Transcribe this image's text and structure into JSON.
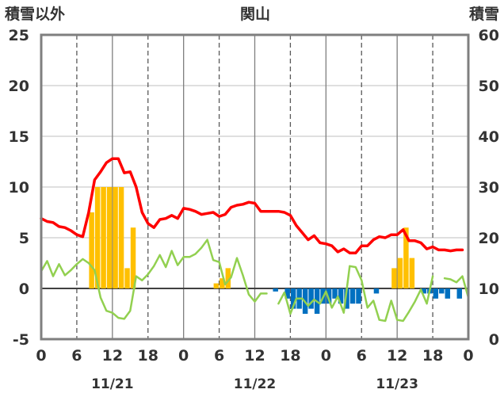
{
  "chart_data": {
    "type": "bar",
    "title": "関山",
    "left_axis_label": "積雪以外",
    "right_axis_label": "積雪",
    "left_ylim": [
      -5,
      25
    ],
    "left_yticks": [
      "-5",
      "0",
      "5",
      "10",
      "15",
      "20",
      "25"
    ],
    "right_ylim": [
      0,
      60
    ],
    "right_yticks": [
      "0",
      "10",
      "20",
      "30",
      "40",
      "50",
      "60"
    ],
    "x_range_hours": [
      0,
      72
    ],
    "x_tick_labels": [
      "0",
      "6",
      "12",
      "18",
      "0",
      "6",
      "12",
      "18",
      "0",
      "6",
      "12",
      "18",
      "0"
    ],
    "date_labels": [
      "11/21",
      "11/22",
      "11/23"
    ],
    "grid": true,
    "colors": {
      "temperature": "#ff0000",
      "green_line": "#92d050",
      "bars_pos": "#ffc000",
      "bars_neg": "#0070c0",
      "snow_depth": "#7030a0",
      "frame": "#7f7f7f"
    },
    "series": [
      {
        "role": "red_line",
        "axis": "left",
        "values": [
          6.9,
          6.6,
          6.5,
          6.1,
          6.0,
          5.7,
          5.3,
          5.1,
          7.5,
          10.7,
          11.5,
          12.4,
          12.8,
          12.8,
          11.4,
          11.5,
          10.0,
          7.5,
          6.4,
          6.0,
          6.8,
          6.9,
          7.2,
          6.9,
          7.9,
          7.8,
          7.6,
          7.3,
          7.4,
          7.5,
          7.1,
          7.3,
          8.0,
          8.2,
          8.3,
          8.5,
          8.4,
          7.6,
          7.6,
          7.6,
          7.6,
          7.5,
          7.2,
          6.2,
          5.5,
          4.8,
          5.2,
          4.5,
          4.4,
          4.2,
          3.6,
          3.9,
          3.5,
          3.5,
          4.2,
          4.2,
          4.8,
          5.1,
          5.0,
          5.3,
          5.3,
          5.8,
          4.7,
          4.7,
          4.5,
          3.9,
          4.1,
          3.8,
          3.8,
          3.7,
          3.8,
          3.8
        ]
      },
      {
        "role": "green_line",
        "axis": "left",
        "values": [
          1.7,
          2.7,
          1.2,
          2.4,
          1.3,
          1.8,
          2.4,
          2.9,
          2.5,
          1.8,
          -0.9,
          -2.2,
          -2.4,
          -2.9,
          -3.0,
          -2.2,
          1.2,
          0.8,
          1.4,
          2.2,
          3.3,
          2.1,
          3.7,
          2.3,
          3.1,
          3.1,
          3.4,
          4.0,
          4.8,
          2.8,
          2.6,
          0.4,
          1.1,
          3.0,
          1.3,
          -0.6,
          -1.3,
          -0.5,
          -0.5,
          null,
          -1.5,
          -0.4,
          -2.5,
          -1.0,
          -1.0,
          -1.7,
          -1.1,
          -1.5,
          -0.3,
          -1.9,
          -0.8,
          -2.4,
          2.2,
          2.1,
          0.8,
          -1.9,
          -1.2,
          -3.1,
          -3.2,
          -1.2,
          -3.1,
          -3.2,
          -2.3,
          -1.3,
          -0.1,
          -1.5,
          1.2,
          null,
          1.0,
          0.9,
          0.6,
          1.2,
          -0.9
        ]
      },
      {
        "role": "bars",
        "axis": "left",
        "values": [
          0,
          0,
          0,
          0,
          0,
          0,
          0,
          0,
          7.5,
          10.0,
          10.0,
          10.0,
          10.0,
          10.0,
          2.0,
          6.0,
          0,
          0,
          0,
          0,
          0,
          0,
          0,
          0,
          0,
          0,
          0,
          0,
          0,
          0.5,
          1.0,
          2.0,
          0,
          0,
          0,
          0,
          0,
          0,
          0,
          -0.3,
          0,
          -1.0,
          -2.0,
          -2.0,
          -2.5,
          -2.0,
          -2.5,
          -1.5,
          -1.5,
          -1.0,
          -1.5,
          -2.0,
          -1.5,
          -1.5,
          0,
          0,
          -0.5,
          0,
          0,
          2.0,
          3.0,
          6.0,
          3.0,
          0,
          -0.5,
          -0.5,
          -1.0,
          -0.5,
          -1.0,
          0,
          -1.0,
          0
        ]
      },
      {
        "role": "snow_depth",
        "axis": "right",
        "values": [
          0,
          0
        ]
      }
    ]
  }
}
